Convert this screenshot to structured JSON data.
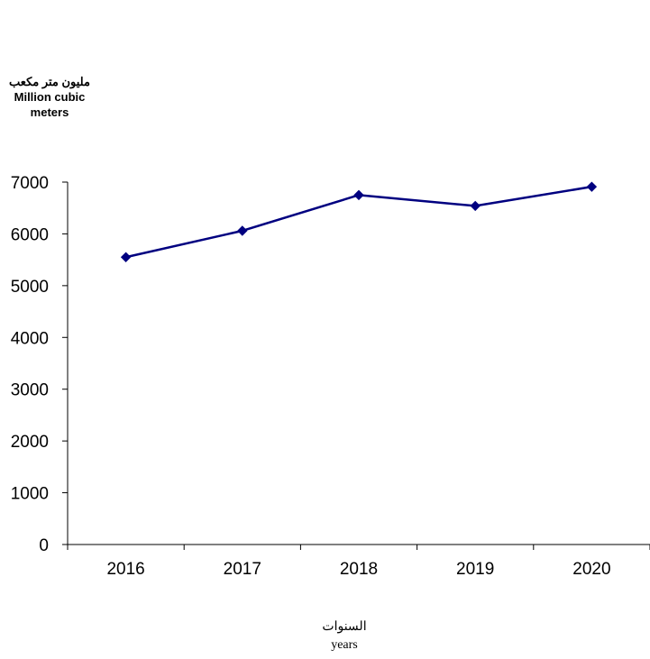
{
  "chart_data": {
    "type": "line",
    "title": "",
    "ylabel_ar": "مليون متر مكعب",
    "ylabel_en_1": "Million cubic",
    "ylabel_en_2": "meters",
    "xlabel_ar": "السنوات",
    "xlabel_en": "years",
    "categories": [
      "2016",
      "2017",
      "2018",
      "2019",
      "2020"
    ],
    "series": [
      {
        "values": [
          5550,
          6060,
          6750,
          6540,
          6910
        ],
        "color": "#000080",
        "marker": "diamond"
      }
    ],
    "ylim": [
      0,
      7000
    ],
    "yticks": [
      "0",
      "1000",
      "2000",
      "3000",
      "4000",
      "5000",
      "6000",
      "7000"
    ],
    "grid": false,
    "legend": "none"
  }
}
